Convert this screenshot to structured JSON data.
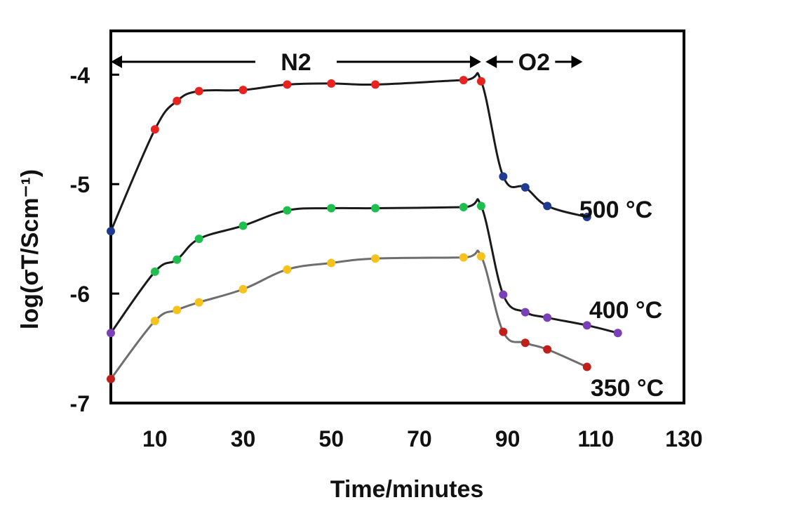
{
  "chart_data": {
    "type": "line",
    "xlabel": "Time/minutes",
    "ylabel": "log(σT/Scm⁻¹)",
    "xlim": [
      0,
      130
    ],
    "ylim": [
      -7,
      -3.6
    ],
    "x_ticks": [
      "10",
      "30",
      "50",
      "70",
      "90",
      "110",
      "130"
    ],
    "y_ticks": [
      "-4",
      "-5",
      "-6",
      "-7"
    ],
    "phases": [
      {
        "label": "N2",
        "from": 0,
        "to": 84
      },
      {
        "label": "O2",
        "from": 85,
        "to": 107
      }
    ],
    "series": [
      {
        "name": "500 °C",
        "line_color": "#1a1a1a",
        "points": [
          {
            "x": 0,
            "y": -5.43,
            "color": "#1f3a93"
          },
          {
            "x": 10,
            "y": -4.5,
            "color": "#e8231f"
          },
          {
            "x": 15,
            "y": -4.24,
            "color": "#e8231f"
          },
          {
            "x": 20,
            "y": -4.15,
            "color": "#e8231f"
          },
          {
            "x": 30,
            "y": -4.14,
            "color": "#e8231f"
          },
          {
            "x": 40,
            "y": -4.09,
            "color": "#e8231f"
          },
          {
            "x": 50,
            "y": -4.08,
            "color": "#e8231f"
          },
          {
            "x": 60,
            "y": -4.09,
            "color": "#e8231f"
          },
          {
            "x": 80,
            "y": -4.05,
            "color": "#e8231f"
          },
          {
            "x": 84,
            "y": -4.06,
            "color": "#e8231f"
          },
          {
            "x": 89,
            "y": -4.93,
            "color": "#1f3a93"
          },
          {
            "x": 94,
            "y": -5.03,
            "color": "#1f3a93"
          },
          {
            "x": 99,
            "y": -5.2,
            "color": "#1f3a93"
          },
          {
            "x": 108,
            "y": -5.3,
            "color": "#1f3a93"
          }
        ]
      },
      {
        "name": "400 °C",
        "line_color": "#1a1a1a",
        "points": [
          {
            "x": 0,
            "y": -6.36,
            "color": "#7b3fb8"
          },
          {
            "x": 10,
            "y": -5.8,
            "color": "#1fbf4f"
          },
          {
            "x": 15,
            "y": -5.69,
            "color": "#1fbf4f"
          },
          {
            "x": 20,
            "y": -5.5,
            "color": "#1fbf4f"
          },
          {
            "x": 30,
            "y": -5.38,
            "color": "#1fbf4f"
          },
          {
            "x": 40,
            "y": -5.24,
            "color": "#1fbf4f"
          },
          {
            "x": 50,
            "y": -5.22,
            "color": "#1fbf4f"
          },
          {
            "x": 60,
            "y": -5.22,
            "color": "#1fbf4f"
          },
          {
            "x": 80,
            "y": -5.21,
            "color": "#1fbf4f"
          },
          {
            "x": 84,
            "y": -5.2,
            "color": "#1fbf4f"
          },
          {
            "x": 89,
            "y": -6.01,
            "color": "#7b3fb8"
          },
          {
            "x": 94,
            "y": -6.17,
            "color": "#7b3fb8"
          },
          {
            "x": 99,
            "y": -6.22,
            "color": "#7b3fb8"
          },
          {
            "x": 108,
            "y": -6.29,
            "color": "#7b3fb8"
          },
          {
            "x": 115,
            "y": -6.36,
            "color": "#7b3fb8"
          }
        ]
      },
      {
        "name": "350 °C",
        "line_color": "#6e6e6e",
        "points": [
          {
            "x": 0,
            "y": -6.78,
            "color": "#c0201b"
          },
          {
            "x": 10,
            "y": -6.25,
            "color": "#f6c21b"
          },
          {
            "x": 15,
            "y": -6.15,
            "color": "#f6c21b"
          },
          {
            "x": 20,
            "y": -6.08,
            "color": "#f6c21b"
          },
          {
            "x": 30,
            "y": -5.96,
            "color": "#f6c21b"
          },
          {
            "x": 40,
            "y": -5.78,
            "color": "#f6c21b"
          },
          {
            "x": 50,
            "y": -5.72,
            "color": "#f6c21b"
          },
          {
            "x": 60,
            "y": -5.68,
            "color": "#f6c21b"
          },
          {
            "x": 80,
            "y": -5.67,
            "color": "#f6c21b"
          },
          {
            "x": 84,
            "y": -5.66,
            "color": "#f6c21b"
          },
          {
            "x": 89,
            "y": -6.35,
            "color": "#c0201b"
          },
          {
            "x": 94,
            "y": -6.45,
            "color": "#c0201b"
          },
          {
            "x": 99,
            "y": -6.51,
            "color": "#c0201b"
          },
          {
            "x": 108,
            "y": -6.67,
            "color": "#c0201b"
          }
        ]
      }
    ]
  }
}
